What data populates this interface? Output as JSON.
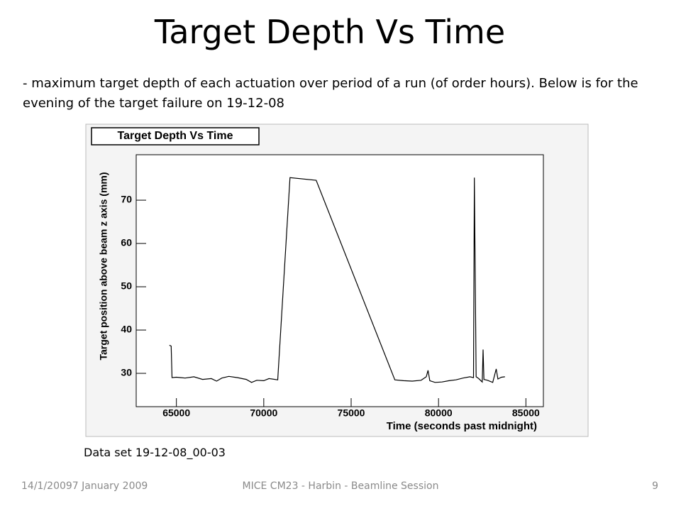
{
  "title": "Target Depth Vs Time",
  "body": "- maximum target depth of each actuation over period of a run (of order hours).  Below is for the evening of the target failure on 19-12-08",
  "caption": "Data set 19-12-08_00-03",
  "footer": {
    "date": "14/1/20097 January 2009",
    "event": "MICE CM23 - Harbin - Beamline Session",
    "page": "9"
  },
  "chart_data": {
    "type": "line",
    "title": "Target Depth Vs Time",
    "x_label": "Time (seconds past midnight)",
    "y_label": "Target position above beam z axis (mm)",
    "color": "#000000",
    "x": [
      64600,
      64700,
      64750,
      65000,
      65500,
      66000,
      66500,
      67000,
      67300,
      67600,
      68000,
      68500,
      69000,
      69300,
      69600,
      70000,
      70300,
      70800,
      71500,
      73000,
      77500,
      78000,
      78500,
      79000,
      79300,
      79400,
      79500,
      79800,
      80200,
      80600,
      81000,
      81400,
      81800,
      82000,
      82050,
      82150,
      82300,
      82500,
      82550,
      82600,
      82800,
      83100,
      83300,
      83400,
      83600,
      83800
    ],
    "values": [
      36.5,
      36.3,
      29.0,
      29.1,
      28.9,
      29.2,
      28.6,
      28.8,
      28.2,
      28.9,
      29.3,
      29.0,
      28.6,
      27.9,
      28.4,
      28.3,
      28.8,
      28.5,
      75.2,
      74.6,
      28.5,
      28.3,
      28.2,
      28.4,
      29.2,
      30.7,
      28.3,
      27.9,
      28.0,
      28.3,
      28.5,
      28.9,
      29.2,
      29.0,
      75.2,
      29.2,
      28.8,
      28.0,
      35.5,
      28.6,
      28.4,
      27.9,
      31.0,
      28.7,
      29.1,
      29.2
    ],
    "xlim": [
      62700,
      86000
    ],
    "xticks": [
      65000,
      70000,
      75000,
      80000,
      85000
    ],
    "ylim": [
      22.3,
      80.5
    ],
    "yticks": [
      30,
      40,
      50,
      60,
      70
    ]
  }
}
